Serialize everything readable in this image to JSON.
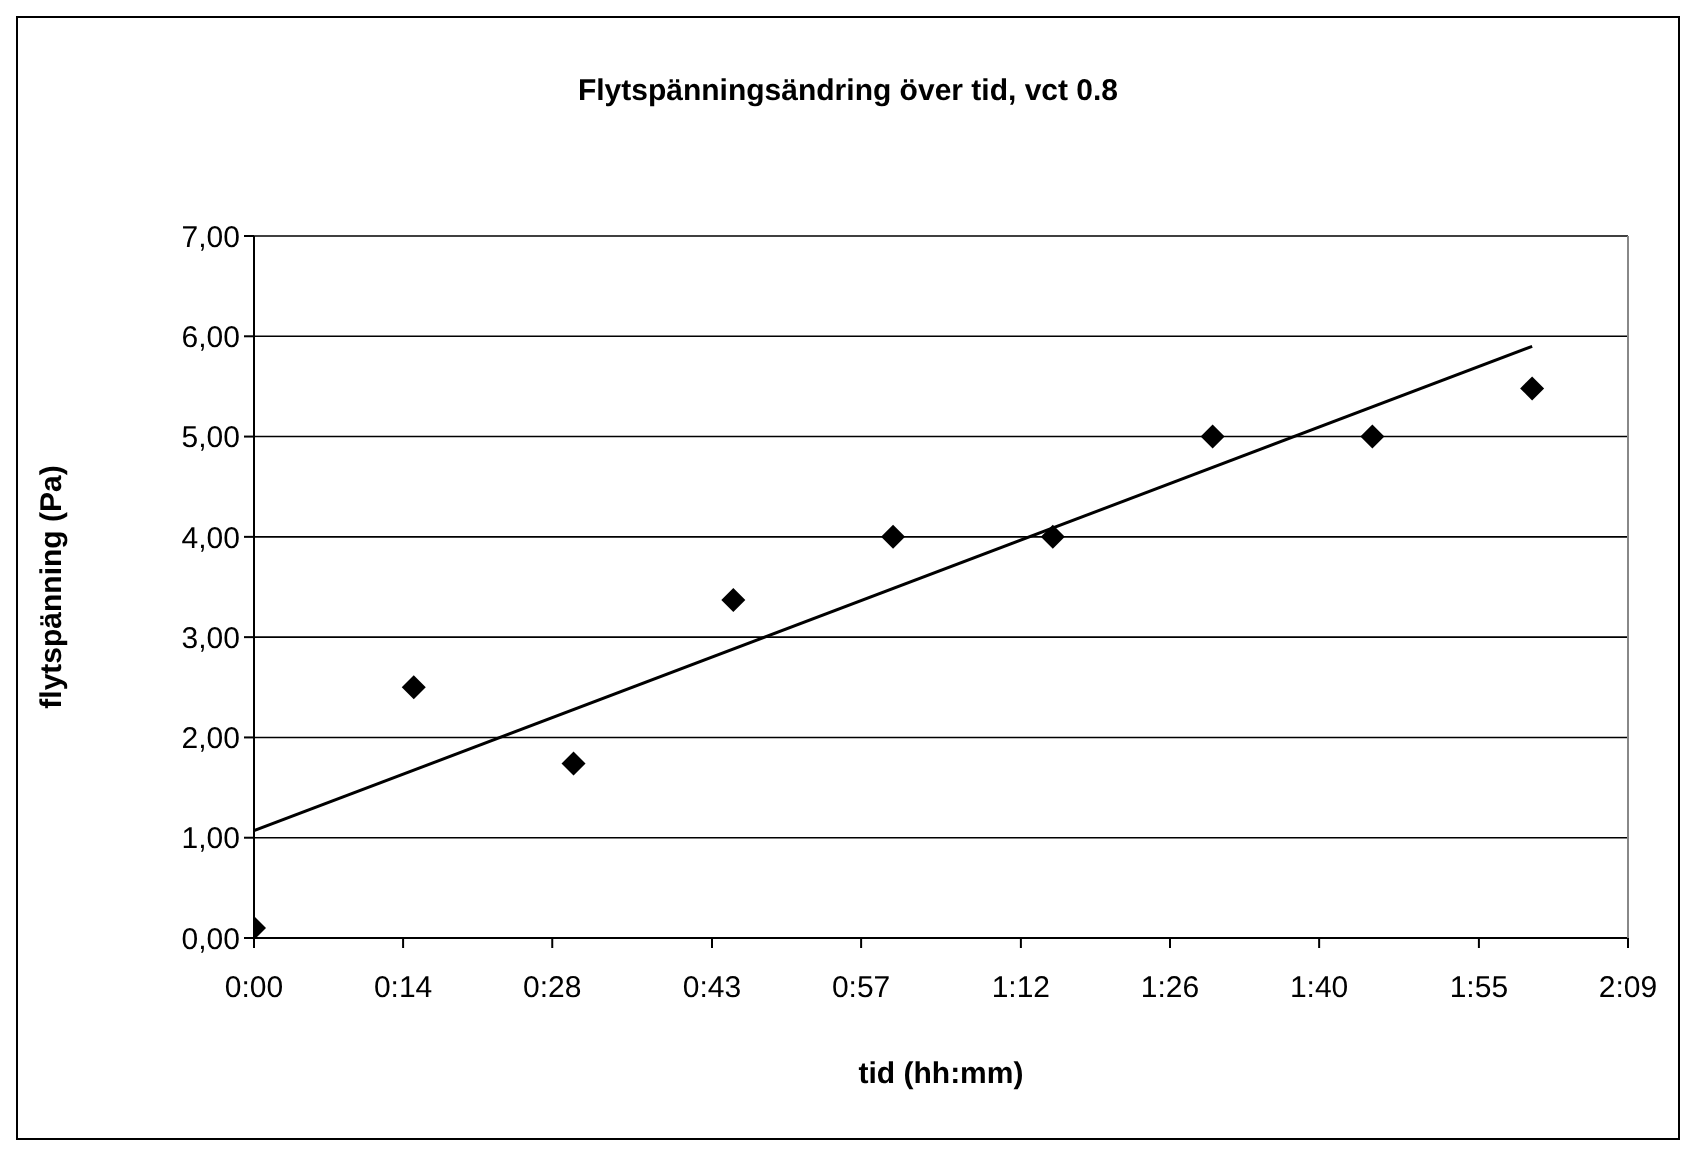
{
  "chart_data": {
    "type": "scatter",
    "title": "Flytspänningsändring över tid, vct 0.8",
    "xlabel": "tid (hh:mm)",
    "ylabel": "flytspänning (Pa)",
    "grid": "y",
    "xlim": [
      0,
      2.15
    ],
    "xticks": [
      {
        "value": 0,
        "label": "0:00"
      },
      {
        "value": 0.2333,
        "label": "0:14"
      },
      {
        "value": 0.4667,
        "label": "0:28"
      },
      {
        "value": 0.7167,
        "label": "0:43"
      },
      {
        "value": 0.95,
        "label": "0:57"
      },
      {
        "value": 1.2,
        "label": "1:12"
      },
      {
        "value": 1.4333,
        "label": "1:26"
      },
      {
        "value": 1.6667,
        "label": "1:40"
      },
      {
        "value": 1.9167,
        "label": "1:55"
      },
      {
        "value": 2.15,
        "label": "2:09"
      }
    ],
    "ylim": [
      0,
      7
    ],
    "yticks": [
      {
        "value": 0,
        "label": "0,00"
      },
      {
        "value": 1,
        "label": "1,00"
      },
      {
        "value": 2,
        "label": "2,00"
      },
      {
        "value": 3,
        "label": "3,00"
      },
      {
        "value": 4,
        "label": "4,00"
      },
      {
        "value": 5,
        "label": "5,00"
      },
      {
        "value": 6,
        "label": "6,00"
      },
      {
        "value": 7,
        "label": "7,00"
      }
    ],
    "series": [
      {
        "type": "scatter",
        "marker": "diamond",
        "color": "#000000",
        "x": [
          0,
          0.25,
          0.5,
          0.75,
          1,
          1.25,
          1.5,
          1.75,
          2
        ],
        "values": [
          0.1,
          2.5,
          1.74,
          3.37,
          4.0,
          4.0,
          5.0,
          5.0,
          5.48
        ]
      },
      {
        "type": "line",
        "marker": "none",
        "color": "#000000",
        "x": [
          0,
          2
        ],
        "values": [
          1.07,
          5.9
        ]
      }
    ]
  }
}
